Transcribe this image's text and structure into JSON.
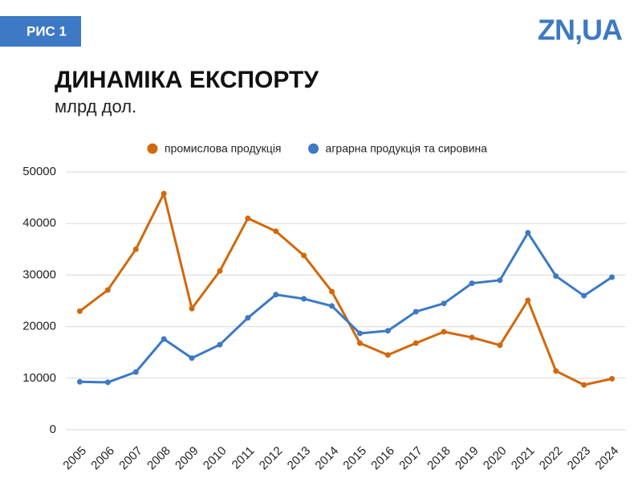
{
  "figure_label": "РИС 1",
  "logo": "ZN,UA",
  "chart_data": {
    "type": "line",
    "title": "ДИНАМІКА ЕКСПОРТУ",
    "subtitle": "млрд дол.",
    "categories": [
      "2005",
      "2006",
      "2007",
      "2008",
      "2009",
      "2010",
      "2011",
      "2012",
      "2013",
      "2014",
      "2015",
      "2016",
      "2017",
      "2018",
      "2019",
      "2020",
      "2021",
      "2022",
      "2023",
      "2024"
    ],
    "series": [
      {
        "name": "промислова продукція",
        "color": "#d2680c",
        "values": [
          23000,
          27100,
          35000,
          45800,
          23500,
          30800,
          41000,
          38500,
          33800,
          26800,
          16800,
          14500,
          16800,
          19000,
          17900,
          16400,
          25100,
          11400,
          8700,
          9900
        ]
      },
      {
        "name": "аграрна продукція та сировина",
        "color": "#3d79c4",
        "values": [
          9300,
          9200,
          11200,
          17600,
          13900,
          16500,
          21700,
          26200,
          25400,
          24000,
          18700,
          19200,
          22900,
          24500,
          28400,
          29000,
          38200,
          29800,
          26000,
          29600
        ]
      }
    ],
    "ylim": [
      0,
      50000
    ],
    "yticks": [
      0,
      10000,
      20000,
      30000,
      40000,
      50000
    ],
    "grid": true,
    "legend": "top"
  }
}
